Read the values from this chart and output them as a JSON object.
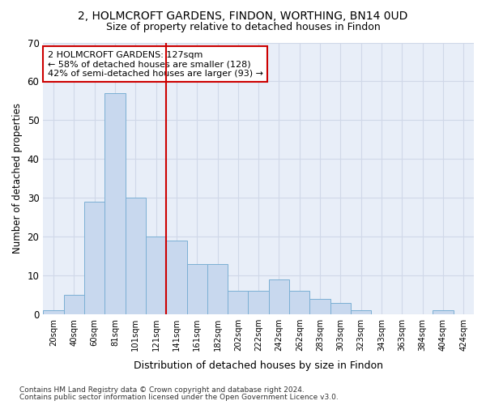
{
  "title": "2, HOLMCROFT GARDENS, FINDON, WORTHING, BN14 0UD",
  "subtitle": "Size of property relative to detached houses in Findon",
  "xlabel": "Distribution of detached houses by size in Findon",
  "ylabel": "Number of detached properties",
  "bar_labels": [
    "20sqm",
    "40sqm",
    "60sqm",
    "81sqm",
    "101sqm",
    "121sqm",
    "141sqm",
    "161sqm",
    "182sqm",
    "202sqm",
    "222sqm",
    "242sqm",
    "262sqm",
    "283sqm",
    "303sqm",
    "323sqm",
    "343sqm",
    "363sqm",
    "384sqm",
    "404sqm",
    "424sqm"
  ],
  "bar_values": [
    1,
    5,
    29,
    57,
    30,
    20,
    19,
    13,
    13,
    6,
    6,
    9,
    6,
    4,
    3,
    1,
    0,
    0,
    0,
    1,
    0
  ],
  "bar_color": "#c8d8ee",
  "bar_edge_color": "#7bafd4",
  "grid_color": "#d0d8e8",
  "bg_color": "#e8eef8",
  "vline_x": 5.5,
  "vline_color": "#cc0000",
  "annotation_text": "2 HOLMCROFT GARDENS: 127sqm\n← 58% of detached houses are smaller (128)\n42% of semi-detached houses are larger (93) →",
  "annotation_box_color": "#cc0000",
  "footer_line1": "Contains HM Land Registry data © Crown copyright and database right 2024.",
  "footer_line2": "Contains public sector information licensed under the Open Government Licence v3.0.",
  "ylim": [
    0,
    70
  ],
  "yticks": [
    0,
    10,
    20,
    30,
    40,
    50,
    60,
    70
  ]
}
